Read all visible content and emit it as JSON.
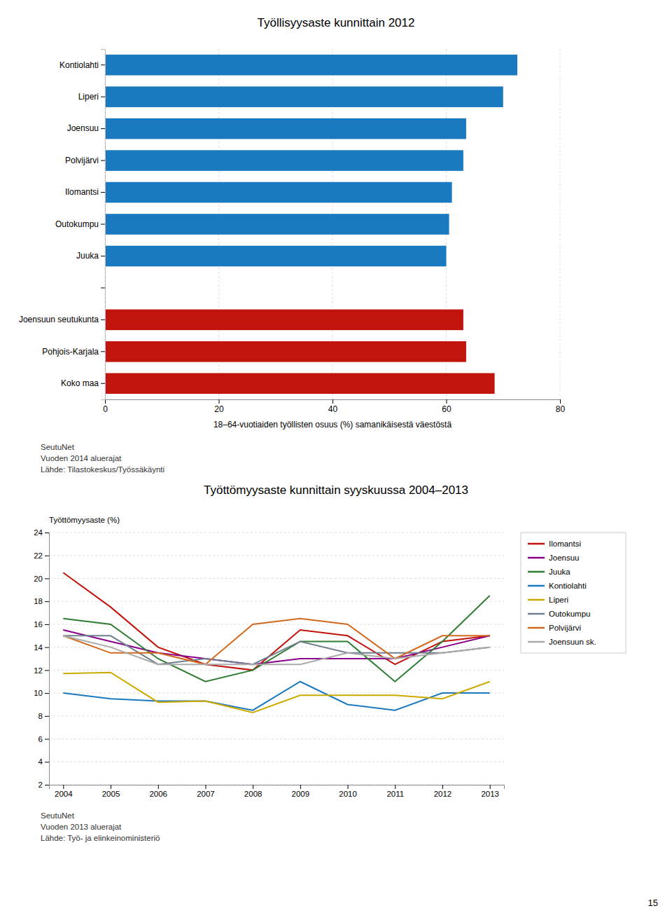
{
  "chart_data": [
    {
      "type": "bar",
      "orientation": "horizontal",
      "title": "Työllisyysaste kunnittain 2012",
      "xlabel": "18–64-vuotiaiden työllisten osuus (%) samanikäisestä väestöstä",
      "categories": [
        "Kontiolahti",
        "Liperi",
        "Joensuu",
        "Polvijärvi",
        "Ilomantsi",
        "Outokumpu",
        "Juuka",
        null,
        "Joensuun seutukunta",
        "Pohjois-Karjala",
        "Koko maa"
      ],
      "values": [
        72.5,
        70.0,
        63.5,
        63.0,
        61.0,
        60.5,
        60.0,
        0,
        63.0,
        63.5,
        68.5
      ],
      "colors": [
        "#1b7abf",
        "#1b7abf",
        "#1b7abf",
        "#1b7abf",
        "#1b7abf",
        "#1b7abf",
        "#1b7abf",
        "#ffffff",
        "#c0140c",
        "#c0140c",
        "#c0140c"
      ],
      "xlim": [
        0,
        80
      ],
      "xticks": [
        0,
        20,
        40,
        60,
        80
      ],
      "grid": true,
      "annotations": [
        "SeutuNet",
        "Vuoden 2014 aluerajat",
        "Lähde: Tilastokeskus/Työssäkäynti"
      ]
    },
    {
      "type": "line",
      "title": "Työttömyysaste kunnittain syyskuussa 2004–2013",
      "ylabel": "Työttömyysaste (%)",
      "x": [
        2004,
        2005,
        2006,
        2007,
        2008,
        2009,
        2010,
        2011,
        2012,
        2013
      ],
      "xlim": [
        2003.7,
        2013.3
      ],
      "xticks": [
        2004,
        2005,
        2006,
        2007,
        2008,
        2009,
        2010,
        2011,
        2012,
        2013
      ],
      "ylim": [
        2,
        24
      ],
      "yticks": [
        2,
        4,
        6,
        8,
        10,
        12,
        14,
        16,
        18,
        20,
        22,
        24
      ],
      "grid": true,
      "legend": "right",
      "series": [
        {
          "name": "Ilomantsi",
          "color": "#c0140c",
          "values": [
            20.5,
            17.5,
            14.0,
            12.5,
            12.0,
            15.5,
            15.0,
            12.5,
            14.5,
            15.0
          ]
        },
        {
          "name": "Joensuu",
          "color": "#8b008b",
          "values": [
            15.5,
            14.5,
            13.5,
            13.0,
            12.5,
            13.0,
            13.0,
            13.0,
            14.0,
            15.0
          ]
        },
        {
          "name": "Juuka",
          "color": "#2e7d32",
          "values": [
            16.5,
            16.0,
            13.0,
            11.0,
            12.0,
            14.5,
            14.5,
            11.0,
            14.5,
            18.5
          ]
        },
        {
          "name": "Kontiolahti",
          "color": "#1b7abf",
          "values": [
            10.0,
            9.5,
            9.3,
            9.3,
            8.5,
            11.0,
            9.0,
            8.5,
            10.0,
            10.0
          ]
        },
        {
          "name": "Liperi",
          "color": "#ccaa00",
          "values": [
            11.7,
            11.8,
            9.2,
            9.3,
            8.3,
            9.8,
            9.8,
            9.8,
            9.5,
            11.0
          ]
        },
        {
          "name": "Outokumpu",
          "color": "#708090",
          "values": [
            15.0,
            15.0,
            12.5,
            13.0,
            12.5,
            14.5,
            13.5,
            13.5,
            13.5,
            14.0
          ]
        },
        {
          "name": "Polvijärvi",
          "color": "#d2691e",
          "values": [
            15.0,
            13.5,
            13.5,
            12.5,
            16.0,
            16.5,
            16.0,
            13.0,
            15.0,
            15.0
          ]
        },
        {
          "name": "Joensuun sk.",
          "color": "#aaaaaa",
          "values": [
            15.0,
            14.0,
            12.5,
            12.5,
            12.5,
            12.5,
            13.5,
            13.0,
            13.5,
            14.0
          ]
        }
      ],
      "annotations": [
        "SeutuNet",
        "Vuoden 2013 aluerajat",
        "Lähde: Työ- ja elinkeinoministeriö",
        "15"
      ]
    }
  ]
}
